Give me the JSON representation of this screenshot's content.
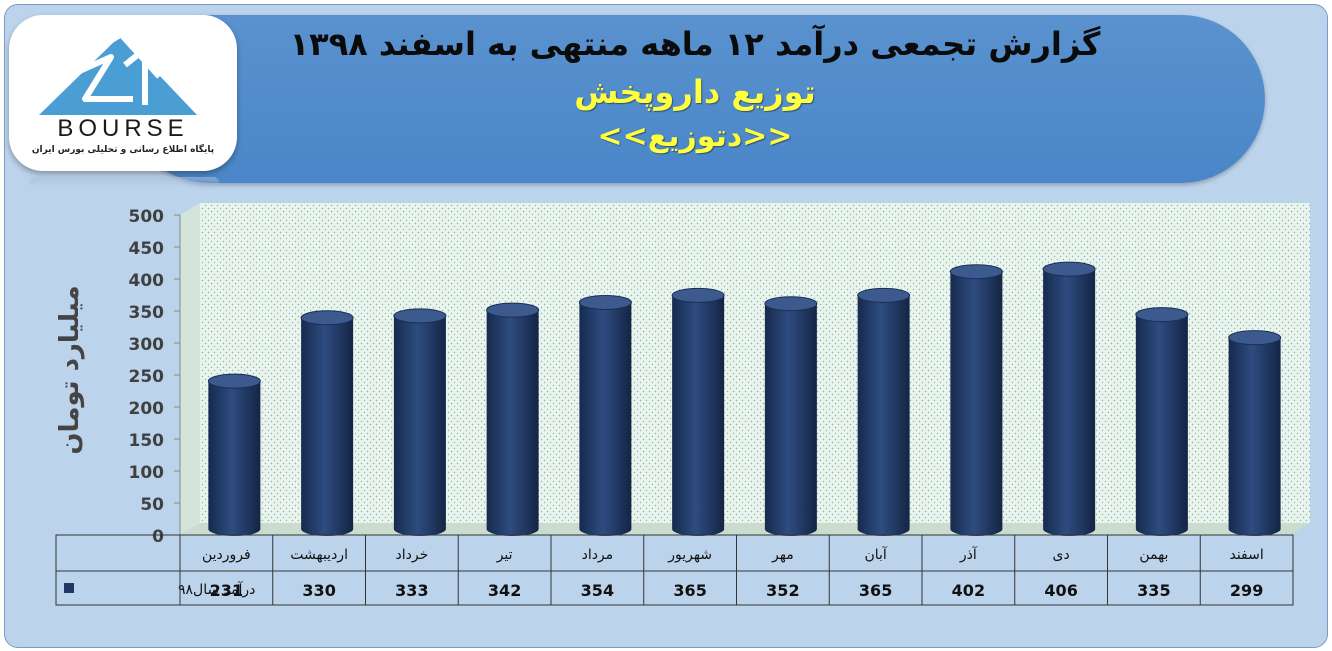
{
  "header": {
    "report_title": "گزارش تجمعی درآمد ۱۲ ماهه منتهی به اسفند ۱۳۹۸",
    "company_name": "توزیع داروپخش",
    "ticker": "<<دتوزیع>>"
  },
  "logo": {
    "wordmark": "BOURSE",
    "tagline": "پایگاه اطلاع رسانی و تحلیلی بورس ایران"
  },
  "colors": {
    "bar": "#1f3864",
    "bar_highlight": "#3d5a8e",
    "plot_area": "#e9f4ef",
    "frame": "#bcd3ec",
    "title_yellow": "#ffff3c"
  },
  "chart_data": {
    "type": "bar",
    "style": "3d-cylinder",
    "categories": [
      "فروردین",
      "اردیبهشت",
      "خرداد",
      "تیر",
      "مرداد",
      "شهریور",
      "مهر",
      "آبان",
      "آذر",
      "دی",
      "بهمن",
      "اسفند"
    ],
    "series": [
      {
        "name": "درآمد سال۹۸",
        "values": [
          231,
          330,
          333,
          342,
          354,
          365,
          352,
          365,
          402,
          406,
          335,
          299
        ]
      }
    ],
    "ylabel": "میلیارد تومان",
    "ylim": [
      0,
      500
    ],
    "yticks": [
      0,
      50,
      100,
      150,
      200,
      250,
      300,
      350,
      400,
      450,
      500
    ],
    "grid": false,
    "legend": "data-table",
    "data_table": true
  }
}
